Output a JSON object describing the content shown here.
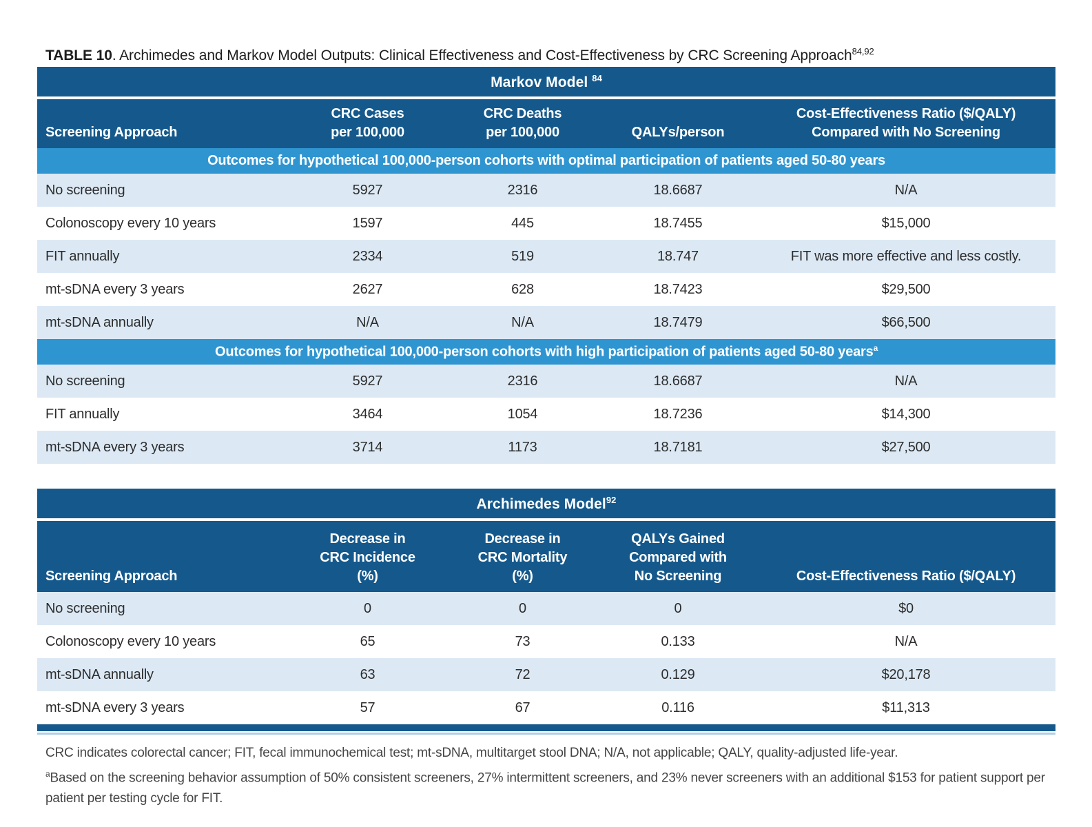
{
  "title": {
    "label": "TABLE 10",
    "rest": ". Archimedes and Markov Model Outputs: Clinical Effectiveness and Cost-Effectiveness by CRC Screening Approach",
    "sup": "84,92"
  },
  "colors": {
    "header_dark_blue": "#15598c",
    "subheader_blue": "#2f95d1",
    "row_light_blue": "#dce9f5",
    "row_white": "#ffffff"
  },
  "markov": {
    "band_label": "Markov Model",
    "band_sup": "84",
    "headers": [
      "Screening Approach",
      "CRC Cases\nper 100,000",
      "CRC Deaths\nper 100,000",
      "QALYs/person",
      "Cost-Effectiveness Ratio ($/QALY)\nCompared with No Screening"
    ],
    "sections": [
      {
        "subheader": "Outcomes for hypothetical 100,000-person cohorts with optimal participation of patients aged 50-80 years",
        "subheader_sup": "",
        "rows": [
          [
            "No screening",
            "5927",
            "2316",
            "18.6687",
            "N/A"
          ],
          [
            "Colonoscopy every 10 years",
            "1597",
            "445",
            "18.7455",
            "$15,000"
          ],
          [
            "FIT annually",
            "2334",
            "519",
            "18.747",
            "FIT was more effective and less costly."
          ],
          [
            "mt-sDNA every 3 years",
            "2627",
            "628",
            "18.7423",
            "$29,500"
          ],
          [
            "mt-sDNA annually",
            "N/A",
            "N/A",
            "18.7479",
            "$66,500"
          ]
        ]
      },
      {
        "subheader": "Outcomes for hypothetical 100,000-person cohorts with high participation of patients aged 50-80 years",
        "subheader_sup": "a",
        "rows": [
          [
            "No screening",
            "5927",
            "2316",
            "18.6687",
            "N/A"
          ],
          [
            "FIT annually",
            "3464",
            "1054",
            "18.7236",
            "$14,300"
          ],
          [
            "mt-sDNA every 3 years",
            "3714",
            "1173",
            "18.7181",
            "$27,500"
          ]
        ]
      }
    ]
  },
  "archimedes": {
    "band_label": "Archimedes Model",
    "band_sup": "92",
    "headers": [
      "Screening Approach",
      "Decrease in\nCRC Incidence\n(%)",
      "Decrease in\nCRC Mortality\n(%)",
      "QALYs Gained\nCompared with\nNo Screening",
      "Cost-Effectiveness Ratio ($/QALY)"
    ],
    "rows": [
      [
        "No screening",
        "0",
        "0",
        "0",
        "$0"
      ],
      [
        "Colonoscopy every 10 years",
        "65",
        "73",
        "0.133",
        "N/A"
      ],
      [
        "mt-sDNA annually",
        "63",
        "72",
        "0.129",
        "$20,178"
      ],
      [
        "mt-sDNA every 3 years",
        "57",
        "67",
        "0.116",
        "$11,313"
      ]
    ]
  },
  "footnotes": {
    "line1": "CRC indicates colorectal cancer; FIT, fecal immunochemical test; mt-sDNA, multitarget stool DNA; N/A, not applicable; QALY, quality-adjusted life-year.",
    "line2_sup": "a",
    "line2": "Based on the screening behavior assumption of 50% consistent screeners, 27% intermittent screeners, and 23% never screeners with an additional $153 for patient support per patient per testing cycle for FIT."
  }
}
